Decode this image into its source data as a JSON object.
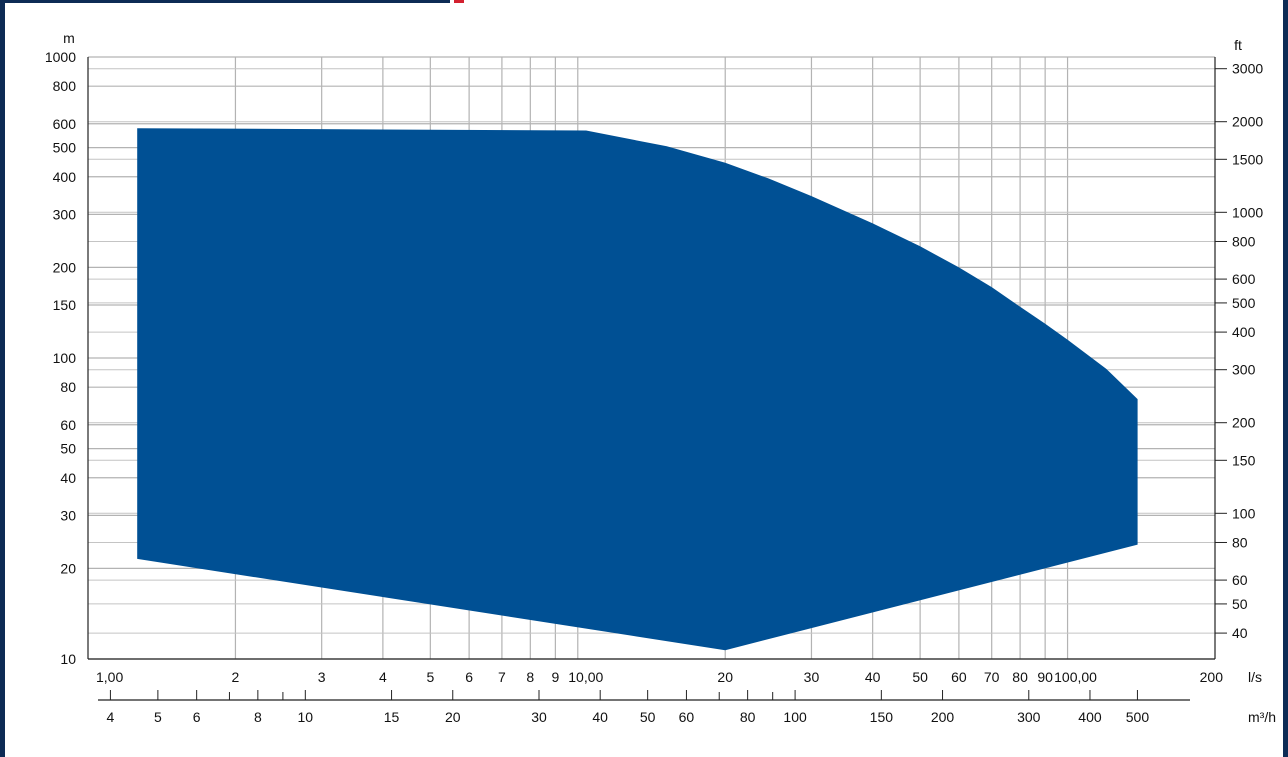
{
  "chart_data": {
    "type": "area",
    "title": "",
    "left_axis": {
      "unit": "m",
      "scale": "log",
      "range": [
        10,
        1000
      ],
      "ticks": [
        {
          "v": 1000,
          "label": "1000"
        },
        {
          "v": 800,
          "label": "800"
        },
        {
          "v": 600,
          "label": "600"
        },
        {
          "v": 500,
          "label": "500"
        },
        {
          "v": 400,
          "label": "400"
        },
        {
          "v": 300,
          "label": "300"
        },
        {
          "v": 200,
          "label": "200"
        },
        {
          "v": 150,
          "label": "150"
        },
        {
          "v": 100,
          "label": "100"
        },
        {
          "v": 80,
          "label": "80"
        },
        {
          "v": 60,
          "label": "60"
        },
        {
          "v": 50,
          "label": "50"
        },
        {
          "v": 40,
          "label": "40"
        },
        {
          "v": 30,
          "label": "30"
        },
        {
          "v": 20,
          "label": "20"
        },
        {
          "v": 10,
          "label": "10"
        }
      ]
    },
    "right_axis": {
      "unit": "ft",
      "scale": "log",
      "ticks": [
        {
          "v": 3000,
          "label": "3000"
        },
        {
          "v": 2000,
          "label": "2000"
        },
        {
          "v": 1500,
          "label": "1500"
        },
        {
          "v": 1000,
          "label": "1000"
        },
        {
          "v": 800,
          "label": "800"
        },
        {
          "v": 600,
          "label": "600"
        },
        {
          "v": 500,
          "label": "500"
        },
        {
          "v": 400,
          "label": "400"
        },
        {
          "v": 300,
          "label": "300"
        },
        {
          "v": 200,
          "label": "200"
        },
        {
          "v": 150,
          "label": "150"
        },
        {
          "v": 100,
          "label": "100"
        },
        {
          "v": 80,
          "label": "80"
        },
        {
          "v": 60,
          "label": "60"
        },
        {
          "v": 50,
          "label": "50"
        },
        {
          "v": 40,
          "label": "40"
        }
      ]
    },
    "bottom_axis_ls": {
      "unit": "l/s",
      "scale": "log",
      "range": [
        1,
        200
      ],
      "ticks": [
        {
          "v": 1,
          "label": "1,00"
        },
        {
          "v": 2,
          "label": "2"
        },
        {
          "v": 3,
          "label": "3"
        },
        {
          "v": 4,
          "label": "4"
        },
        {
          "v": 5,
          "label": "5"
        },
        {
          "v": 6,
          "label": "6"
        },
        {
          "v": 7,
          "label": "7"
        },
        {
          "v": 8,
          "label": "8"
        },
        {
          "v": 9,
          "label": "9"
        },
        {
          "v": 10,
          "label": "10,00"
        },
        {
          "v": 20,
          "label": "20"
        },
        {
          "v": 30,
          "label": "30"
        },
        {
          "v": 40,
          "label": "40"
        },
        {
          "v": 50,
          "label": "50"
        },
        {
          "v": 60,
          "label": "60"
        },
        {
          "v": 70,
          "label": "70"
        },
        {
          "v": 80,
          "label": "80"
        },
        {
          "v": 90,
          "label": "90"
        },
        {
          "v": 100,
          "label": "100,00"
        },
        {
          "v": 200,
          "label": "200"
        }
      ]
    },
    "bottom_axis_m3h": {
      "unit": "m³/h",
      "ticks": [
        {
          "v": 4,
          "label": "4"
        },
        {
          "v": 5,
          "label": "5"
        },
        {
          "v": 6,
          "label": "6"
        },
        {
          "v": 7,
          "label": ""
        },
        {
          "v": 8,
          "label": "8"
        },
        {
          "v": 9,
          "label": ""
        },
        {
          "v": 10,
          "label": "10"
        },
        {
          "v": 15,
          "label": "15"
        },
        {
          "v": 20,
          "label": "20"
        },
        {
          "v": 30,
          "label": "30"
        },
        {
          "v": 40,
          "label": "40"
        },
        {
          "v": 50,
          "label": "50"
        },
        {
          "v": 60,
          "label": "60"
        },
        {
          "v": 70,
          "label": ""
        },
        {
          "v": 80,
          "label": "80"
        },
        {
          "v": 90,
          "label": ""
        },
        {
          "v": 100,
          "label": "100"
        },
        {
          "v": 150,
          "label": "150"
        },
        {
          "v": 200,
          "label": "200"
        },
        {
          "v": 300,
          "label": "300"
        },
        {
          "v": 400,
          "label": "400"
        },
        {
          "v": 500,
          "label": "500"
        }
      ]
    },
    "grid": true,
    "series": [
      {
        "color": "#005094",
        "points_ls_m": [
          [
            1.26,
            21.5
          ],
          [
            1.26,
            580
          ],
          [
            10.4,
            570
          ],
          [
            15.2,
            505
          ],
          [
            20.0,
            445
          ],
          [
            24.5,
            395
          ],
          [
            30.0,
            345
          ],
          [
            40.0,
            280
          ],
          [
            50.0,
            235
          ],
          [
            60.0,
            200
          ],
          [
            70.0,
            172
          ],
          [
            80.0,
            148
          ],
          [
            90.0,
            130
          ],
          [
            100.0,
            115
          ],
          [
            120.0,
            92
          ],
          [
            139.0,
            73
          ],
          [
            139.0,
            24
          ],
          [
            20.0,
            10.7
          ],
          [
            1.26,
            21.5
          ]
        ]
      }
    ]
  }
}
